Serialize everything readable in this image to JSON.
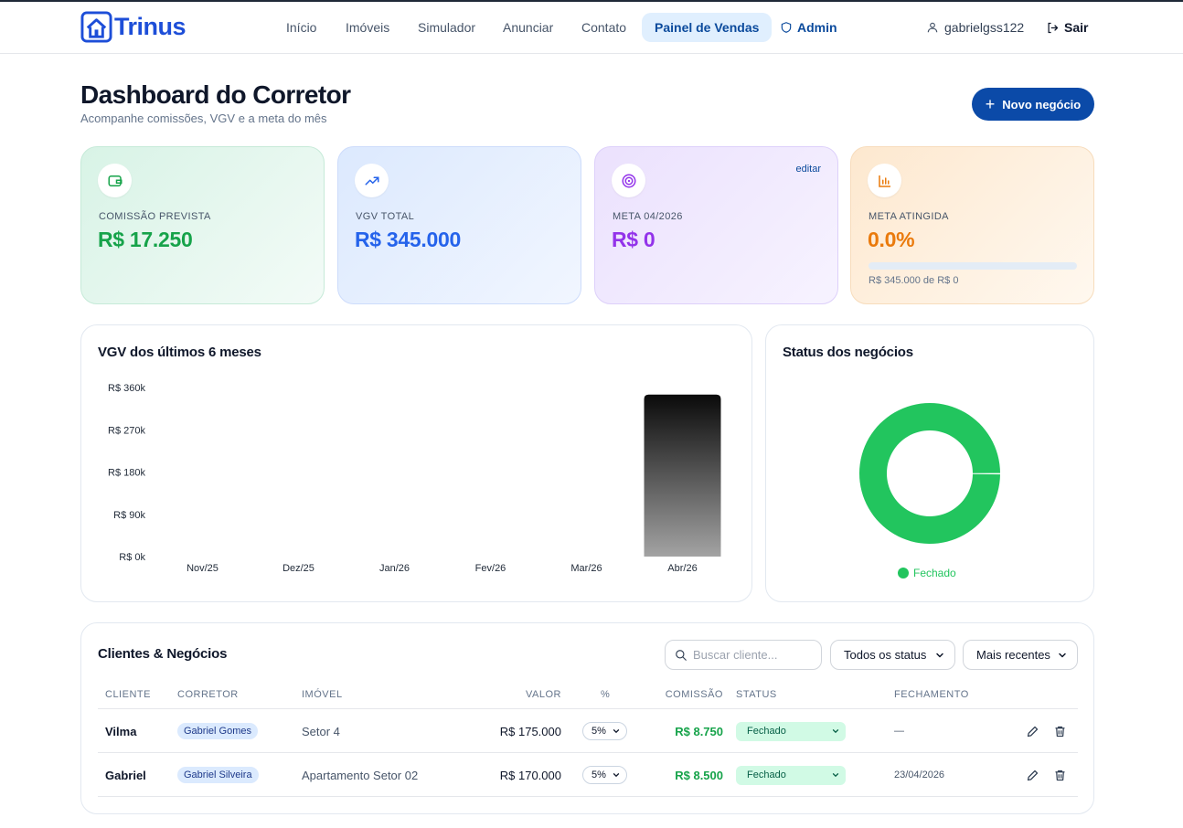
{
  "nav": {
    "brand": "Trinus",
    "links": [
      "Início",
      "Imóveis",
      "Simulador",
      "Anunciar",
      "Contato",
      "Painel de Vendas",
      "Admin"
    ],
    "user": "gabrielgss122",
    "logout": "Sair"
  },
  "header": {
    "title": "Dashboard do Corretor",
    "subtitle": "Acompanhe comissões, VGV e a meta do mês",
    "new_button": "Novo negócio"
  },
  "kpis": {
    "commission": {
      "label": "COMISSÃO PREVISTA",
      "value": "R$ 17.250",
      "icon": "wallet-icon",
      "color": "#16a34a"
    },
    "vgv": {
      "label": "VGV TOTAL",
      "value": "R$ 345.000",
      "icon": "trending-up-icon",
      "color": "#2563eb"
    },
    "goal": {
      "label": "META 04/2026",
      "value": "R$ 0",
      "edit": "editar",
      "icon": "target-icon",
      "color": "#9333ea"
    },
    "achieved": {
      "label": "META ATINGIDA",
      "value": "0.0%",
      "progress": 0,
      "note": "R$ 345.000 de R$ 0",
      "icon": "bar-chart-icon",
      "color": "#ea7a0c"
    }
  },
  "charts": {
    "vgv_title": "VGV dos últimos 6 meses",
    "status_title": "Status dos negócios"
  },
  "chart_data": [
    {
      "type": "bar",
      "title": "VGV dos últimos 6 meses",
      "categories": [
        "Nov/25",
        "Dez/25",
        "Jan/26",
        "Fev/26",
        "Mar/26",
        "Abr/26"
      ],
      "values": [
        0,
        0,
        0,
        0,
        0,
        345000
      ],
      "ytick_values": [
        0,
        90000,
        180000,
        270000,
        360000
      ],
      "ytick_labels": [
        "R$ 0k",
        "R$ 90k",
        "R$ 180k",
        "R$ 270k",
        "R$ 360k"
      ],
      "ylim": [
        0,
        360000
      ]
    },
    {
      "type": "pie",
      "title": "Status dos negócios",
      "labels": [
        "Fechado"
      ],
      "values": [
        2
      ],
      "colors": [
        "#22c55e"
      ],
      "legend": "bottom"
    }
  ],
  "table": {
    "title": "Clientes & Negócios",
    "search_placeholder": "Buscar cliente...",
    "status_filter": "Todos os status",
    "sort": "Mais recentes",
    "headers": {
      "client": "CLIENTE",
      "broker": "CORRETOR",
      "property": "IMÓVEL",
      "value": "VALOR",
      "pct": "%",
      "commission": "COMISSÃO",
      "status": "STATUS",
      "closing": "FECHAMENTO"
    },
    "rows": [
      {
        "client": "Vilma",
        "broker": "Gabriel Gomes",
        "property": "Setor 4",
        "value": "R$ 175.000",
        "pct": "5%",
        "commission": "R$ 8.750",
        "status": "Fechado",
        "closing": "—"
      },
      {
        "client": "Gabriel",
        "broker": "Gabriel Silveira",
        "property": "Apartamento Setor 02",
        "value": "R$ 170.000",
        "pct": "5%",
        "commission": "R$ 8.500",
        "status": "Fechado",
        "closing": "23/04/2026"
      }
    ]
  }
}
